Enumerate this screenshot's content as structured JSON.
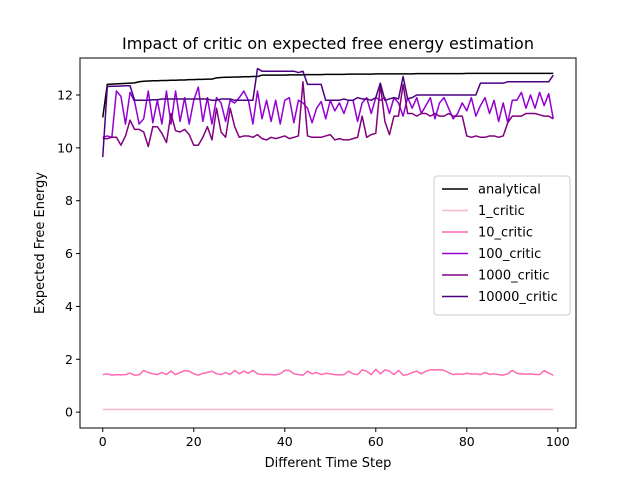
{
  "chart_data": {
    "type": "line",
    "title": "Impact of critic on expected free energy estimation",
    "xlabel": "Different Time Step",
    "ylabel": "Expected Free Energy",
    "xlim": [
      -5,
      104
    ],
    "ylim": [
      -0.6,
      13.4
    ],
    "xticks": [
      0,
      20,
      40,
      60,
      80,
      100
    ],
    "yticks": [
      0,
      2,
      4,
      6,
      8,
      10,
      12
    ],
    "grid": false,
    "legend_position": "center-right",
    "series": [
      {
        "name": "analytical",
        "color": "#000000",
        "values": [
          11.15,
          12.4,
          12.41,
          12.42,
          12.43,
          12.44,
          12.45,
          12.46,
          12.5,
          12.52,
          12.53,
          12.54,
          12.54,
          12.55,
          12.55,
          12.56,
          12.56,
          12.57,
          12.57,
          12.58,
          12.58,
          12.59,
          12.59,
          12.6,
          12.6,
          12.65,
          12.66,
          12.67,
          12.67,
          12.68,
          12.68,
          12.69,
          12.69,
          12.7,
          12.7,
          12.75,
          12.75,
          12.75,
          12.75,
          12.75,
          12.75,
          12.76,
          12.76,
          12.76,
          12.76,
          12.77,
          12.77,
          12.77,
          12.77,
          12.78,
          12.78,
          12.78,
          12.78,
          12.78,
          12.79,
          12.79,
          12.79,
          12.79,
          12.79,
          12.79,
          12.8,
          12.8,
          12.8,
          12.8,
          12.8,
          12.8,
          12.8,
          12.8,
          12.8,
          12.81,
          12.81,
          12.81,
          12.81,
          12.81,
          12.81,
          12.81,
          12.81,
          12.81,
          12.81,
          12.81,
          12.82,
          12.82,
          12.82,
          12.82,
          12.82,
          12.82,
          12.82,
          12.82,
          12.82,
          12.82,
          12.82,
          12.82,
          12.82,
          12.82,
          12.82,
          12.82,
          12.82,
          12.82,
          12.82,
          12.82
        ]
      },
      {
        "name": "1_critic",
        "color": "#f7b6d2",
        "values": [
          0.1,
          0.1,
          0.1,
          0.1,
          0.1,
          0.1,
          0.1,
          0.1,
          0.1,
          0.1,
          0.1,
          0.1,
          0.1,
          0.1,
          0.1,
          0.1,
          0.1,
          0.1,
          0.1,
          0.1,
          0.1,
          0.1,
          0.1,
          0.1,
          0.1,
          0.1,
          0.1,
          0.1,
          0.1,
          0.1,
          0.1,
          0.1,
          0.1,
          0.1,
          0.1,
          0.1,
          0.1,
          0.1,
          0.1,
          0.1,
          0.1,
          0.1,
          0.1,
          0.1,
          0.1,
          0.1,
          0.1,
          0.1,
          0.1,
          0.1,
          0.1,
          0.1,
          0.1,
          0.1,
          0.1,
          0.1,
          0.1,
          0.1,
          0.1,
          0.1,
          0.1,
          0.1,
          0.1,
          0.1,
          0.1,
          0.1,
          0.1,
          0.1,
          0.1,
          0.1,
          0.1,
          0.1,
          0.1,
          0.1,
          0.1,
          0.1,
          0.1,
          0.1,
          0.1,
          0.1,
          0.1,
          0.1,
          0.1,
          0.1,
          0.1,
          0.1,
          0.1,
          0.1,
          0.1,
          0.1,
          0.1,
          0.1,
          0.1,
          0.1,
          0.1,
          0.1,
          0.1,
          0.1,
          0.1,
          0.1
        ]
      },
      {
        "name": "10_critic",
        "color": "#ff69b4",
        "values": [
          1.42,
          1.45,
          1.4,
          1.42,
          1.41,
          1.42,
          1.48,
          1.4,
          1.41,
          1.58,
          1.5,
          1.45,
          1.42,
          1.5,
          1.42,
          1.56,
          1.42,
          1.5,
          1.57,
          1.55,
          1.45,
          1.4,
          1.47,
          1.5,
          1.55,
          1.45,
          1.42,
          1.5,
          1.42,
          1.58,
          1.45,
          1.55,
          1.47,
          1.58,
          1.45,
          1.42,
          1.43,
          1.42,
          1.41,
          1.45,
          1.58,
          1.58,
          1.45,
          1.42,
          1.4,
          1.55,
          1.45,
          1.5,
          1.42,
          1.47,
          1.45,
          1.42,
          1.41,
          1.42,
          1.55,
          1.45,
          1.42,
          1.6,
          1.55,
          1.42,
          1.62,
          1.45,
          1.6,
          1.55,
          1.42,
          1.58,
          1.4,
          1.42,
          1.5,
          1.55,
          1.45,
          1.55,
          1.6,
          1.6,
          1.6,
          1.58,
          1.5,
          1.42,
          1.45,
          1.43,
          1.47,
          1.44,
          1.45,
          1.42,
          1.5,
          1.43,
          1.45,
          1.42,
          1.4,
          1.45,
          1.58,
          1.47,
          1.45,
          1.44,
          1.45,
          1.43,
          1.42,
          1.57,
          1.48,
          1.4
        ]
      },
      {
        "name": "100_critic",
        "color": "#9400d3",
        "values": [
          10.4,
          10.45,
          10.4,
          12.15,
          11.95,
          10.9,
          12.1,
          11.75,
          10.9,
          11.1,
          12.15,
          10.95,
          11.8,
          10.9,
          12.15,
          10.9,
          12.15,
          11.0,
          11.9,
          10.9,
          11.8,
          12.3,
          11.0,
          11.9,
          10.9,
          11.9,
          11.7,
          11.0,
          11.8,
          11.7,
          11.9,
          12.15,
          11.8,
          10.9,
          12.15,
          11.1,
          11.8,
          11.0,
          11.8,
          10.9,
          11.8,
          11.9,
          10.95,
          11.8,
          11.7,
          11.5,
          10.95,
          11.5,
          11.75,
          11.1,
          11.8,
          11.4,
          11.7,
          11.3,
          11.8,
          11.8,
          11.0,
          11.7,
          11.9,
          11.3,
          11.9,
          11.8,
          11.9,
          11.3,
          11.9,
          11.7,
          11.2,
          11.9,
          11.5,
          11.9,
          11.3,
          11.6,
          11.9,
          11.1,
          11.7,
          11.9,
          11.5,
          11.1,
          11.3,
          11.7,
          11.4,
          11.9,
          11.2,
          11.6,
          11.9,
          11.3,
          11.8,
          11.0,
          11.7,
          10.95,
          11.8,
          11.8,
          12.1,
          11.5,
          12.0,
          11.5,
          12.1,
          11.6,
          12.05,
          11.1
        ]
      },
      {
        "name": "1000_critic",
        "color": "#800080",
        "values": [
          10.35,
          10.35,
          10.4,
          10.4,
          10.1,
          10.45,
          11.05,
          10.7,
          10.7,
          10.6,
          10.05,
          10.8,
          10.8,
          10.55,
          10.2,
          11.3,
          10.65,
          10.6,
          10.7,
          10.5,
          10.1,
          10.1,
          10.4,
          10.8,
          10.3,
          11.5,
          10.6,
          10.4,
          11.5,
          10.8,
          10.4,
          10.45,
          10.45,
          10.4,
          10.5,
          10.35,
          10.3,
          10.4,
          10.35,
          10.4,
          10.45,
          10.35,
          10.4,
          10.45,
          12.5,
          10.45,
          10.4,
          10.4,
          10.4,
          10.45,
          10.5,
          10.3,
          10.35,
          10.3,
          10.3,
          10.35,
          10.4,
          11.2,
          10.4,
          10.5,
          10.55,
          12.4,
          11.0,
          10.5,
          11.2,
          11.2,
          12.4,
          11.3,
          11.3,
          11.2,
          11.3,
          11.3,
          11.2,
          11.3,
          11.2,
          11.2,
          11.3,
          11.2,
          11.2,
          11.2,
          10.45,
          10.4,
          10.45,
          10.4,
          10.4,
          10.45,
          10.45,
          10.4,
          10.45,
          10.95,
          11.2,
          11.2,
          11.2,
          11.3,
          11.3,
          11.3,
          11.25,
          11.2,
          11.2,
          11.1
        ]
      },
      {
        "name": "10000_critic",
        "color": "#4b0082",
        "values": [
          9.65,
          12.32,
          12.33,
          12.33,
          12.34,
          12.35,
          12.35,
          11.8,
          11.8,
          11.8,
          11.8,
          11.82,
          11.82,
          11.85,
          11.85,
          11.85,
          11.85,
          11.85,
          11.85,
          11.85,
          11.85,
          11.85,
          11.85,
          11.85,
          11.8,
          11.8,
          11.85,
          11.85,
          11.85,
          11.8,
          11.8,
          11.8,
          11.8,
          11.8,
          13.0,
          12.9,
          12.9,
          12.9,
          12.9,
          12.9,
          12.9,
          12.9,
          12.9,
          12.85,
          12.9,
          12.4,
          12.4,
          12.4,
          12.4,
          11.8,
          11.8,
          11.8,
          11.8,
          11.85,
          11.8,
          11.8,
          11.9,
          11.85,
          11.85,
          11.8,
          11.9,
          12.45,
          11.8,
          11.85,
          11.9,
          11.85,
          12.7,
          11.85,
          11.9,
          12.0,
          12.0,
          12.0,
          12.0,
          12.0,
          12.0,
          12.0,
          12.0,
          12.0,
          12.0,
          12.0,
          12.0,
          12.0,
          12.0,
          12.45,
          12.45,
          12.45,
          12.45,
          12.45,
          12.45,
          12.5,
          12.5,
          12.5,
          12.5,
          12.5,
          12.5,
          12.5,
          12.5,
          12.5,
          12.5,
          12.75
        ]
      }
    ]
  }
}
